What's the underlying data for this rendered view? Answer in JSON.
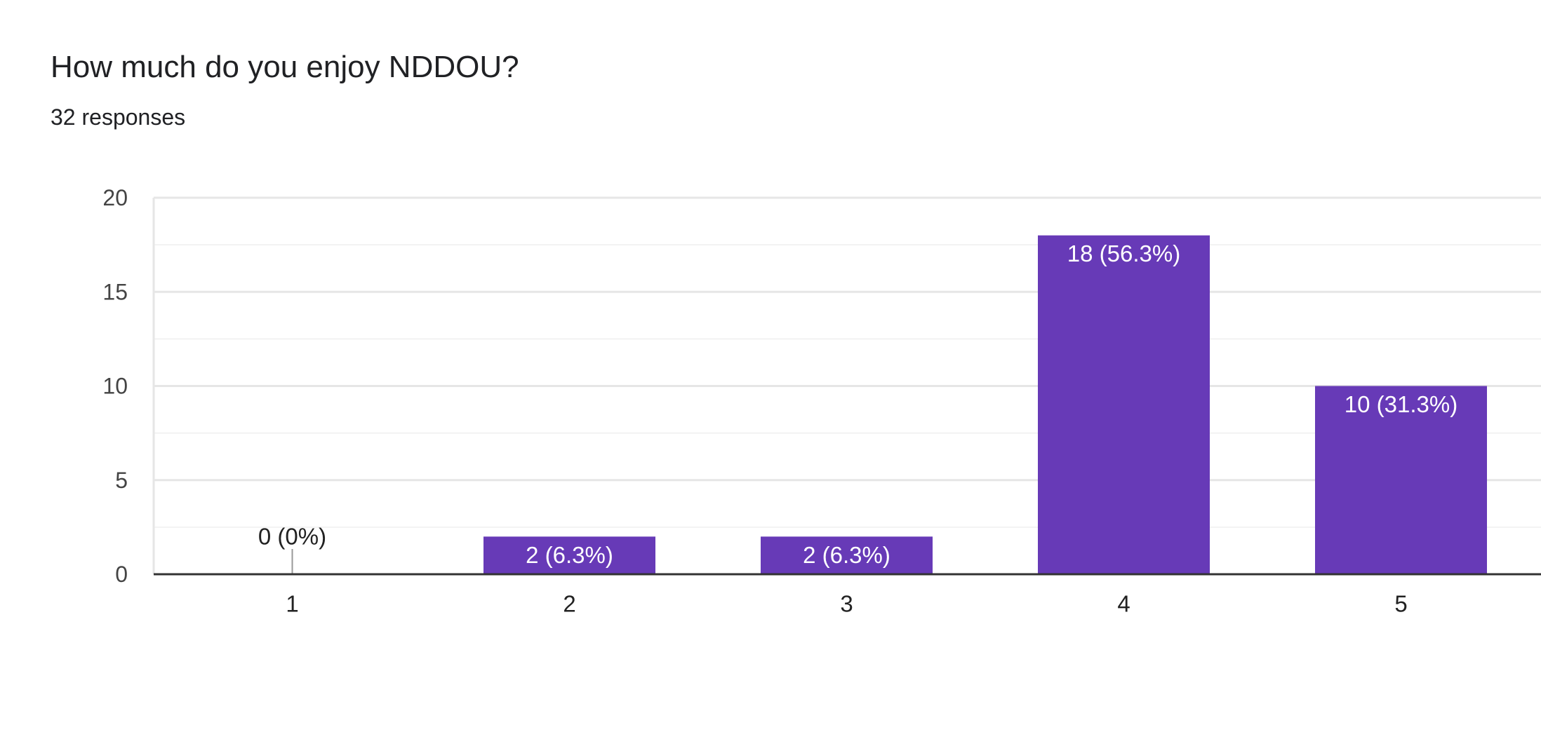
{
  "header": {
    "question": "How much do you enjoy NDDOU?",
    "responses": "32 responses"
  },
  "colors": {
    "bar": "#673ab7",
    "grid": "#e6e6e6",
    "minor_grid": "#f2f2f2",
    "axis": "#333333",
    "inside_label": "#ffffff",
    "outside_label": "#222222"
  },
  "chart_data": {
    "type": "bar",
    "title": "How much do you enjoy NDDOU?",
    "subtitle": "32 responses",
    "categories": [
      "1",
      "2",
      "3",
      "4",
      "5"
    ],
    "values": [
      0,
      2,
      2,
      18,
      10
    ],
    "data_labels": [
      "0 (0%)",
      "2 (6.3%)",
      "2 (6.3%)",
      "18 (56.3%)",
      "10 (31.3%)"
    ],
    "yticks": [
      0,
      5,
      10,
      15,
      20
    ],
    "ylim": [
      0,
      20
    ],
    "xlabel": "",
    "ylabel": "",
    "grid": true,
    "legend": "none"
  }
}
